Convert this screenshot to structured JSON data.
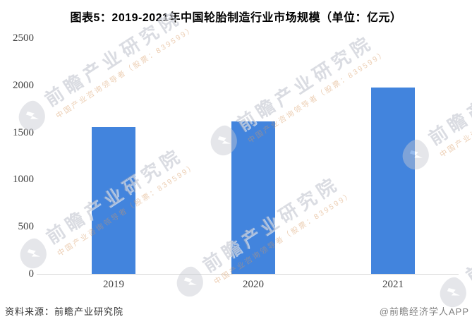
{
  "title": "图表5：2019-2021年中国轮胎制造行业市场规模（单位：亿元）",
  "chart_data": {
    "type": "bar",
    "categories": [
      "2019",
      "2020",
      "2021"
    ],
    "values": [
      1555,
      1615,
      1975
    ],
    "title": "图表5：2019-2021年中国轮胎制造行业市场规模（单位：亿元）",
    "unit": "亿元",
    "xlabel": "",
    "ylabel": "",
    "ylim": [
      0,
      2500
    ],
    "yticks": [
      0,
      500,
      1000,
      1500,
      2000,
      2500
    ],
    "grid": false,
    "legend": "none"
  },
  "watermark": {
    "main_text": "前瞻产业研究院",
    "sub_text": "中国产业咨询领导者（股票：839599）"
  },
  "footer": {
    "source": "资料来源：前瞻产业研究院",
    "credit": "@前瞻经济学人APP"
  },
  "colors": {
    "bar": "#4284dd",
    "axis_line": "#d9d9d9",
    "tick_label": "#404040",
    "title": "#000000",
    "footer_source": "#333333",
    "footer_credit": "#808080",
    "watermark_main": "#9ea4b2",
    "watermark_sub": "#d89860"
  }
}
